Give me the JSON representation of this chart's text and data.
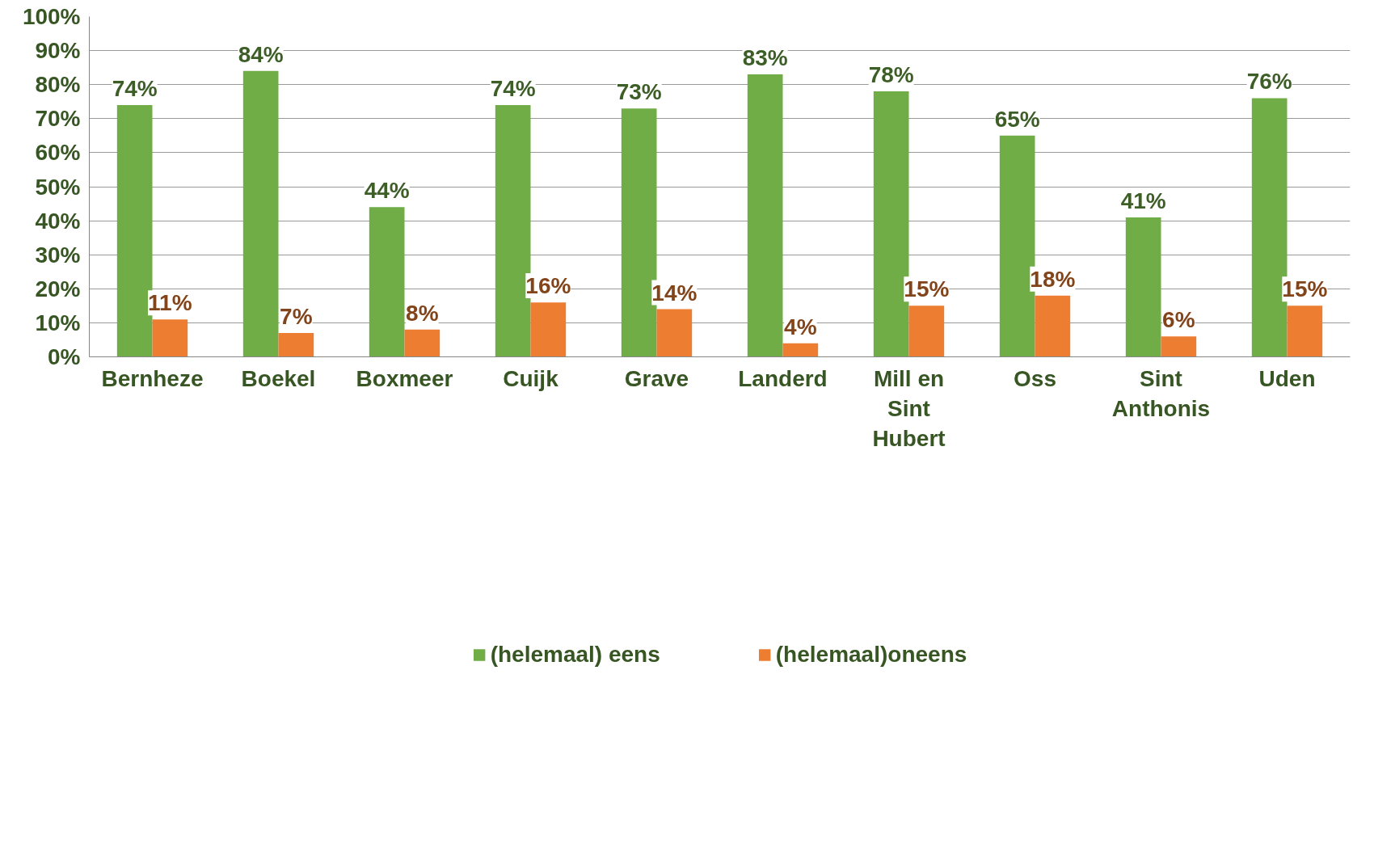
{
  "chart_data": {
    "type": "bar",
    "categories": [
      "Bernheze",
      "Boekel",
      "Boxmeer",
      "Cuijk",
      "Grave",
      "Landerd",
      "Mill en Sint Hubert",
      "Oss",
      "Sint Anthonis",
      "Uden"
    ],
    "series": [
      {
        "name": "(helemaal) eens",
        "color": "#70ad47",
        "values": [
          74,
          84,
          44,
          74,
          73,
          83,
          78,
          65,
          41,
          76
        ],
        "value_labels": [
          "74%",
          "84%",
          "44%",
          "74%",
          "73%",
          "83%",
          "78%",
          "65%",
          "41%",
          "76%"
        ]
      },
      {
        "name": "(helemaal)oneens",
        "color": "#ed7d31",
        "values": [
          11,
          7,
          8,
          16,
          14,
          4,
          15,
          18,
          6,
          15
        ],
        "value_labels": [
          "11%",
          "7%",
          "8%",
          "16%",
          "14%",
          "4%",
          "15%",
          "18%",
          "6%",
          "15%"
        ]
      }
    ],
    "ylim": [
      0,
      100
    ],
    "yticks": [
      {
        "value": 0,
        "label": "0%"
      },
      {
        "value": 10,
        "label": "10%"
      },
      {
        "value": 20,
        "label": "20%"
      },
      {
        "value": 30,
        "label": "30%"
      },
      {
        "value": 40,
        "label": "40%"
      },
      {
        "value": 50,
        "label": "50%"
      },
      {
        "value": 60,
        "label": "60%"
      },
      {
        "value": 70,
        "label": "70%"
      },
      {
        "value": 80,
        "label": "80%"
      },
      {
        "value": 90,
        "label": "90%"
      },
      {
        "value": 100,
        "label": "100%"
      }
    ],
    "grid": "y",
    "legend": "bottom"
  }
}
